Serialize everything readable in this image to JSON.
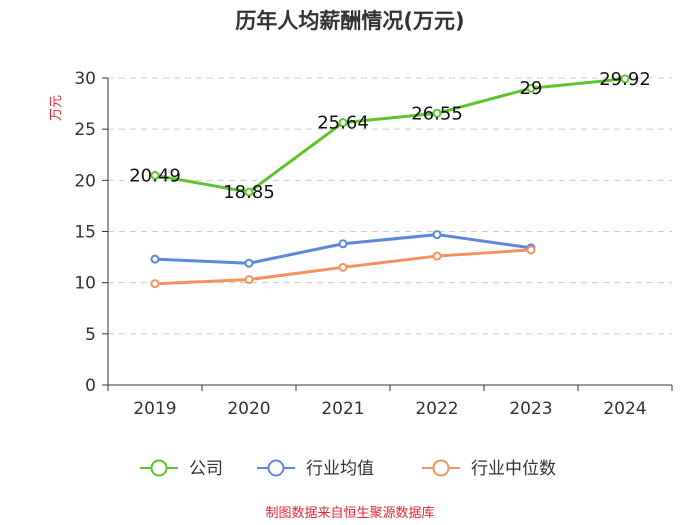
{
  "chart_data": {
    "type": "line",
    "title": "历年人均薪酬情况(万元)",
    "ylabel": "万元",
    "xlabel": "",
    "categories": [
      "2019",
      "2020",
      "2021",
      "2022",
      "2023",
      "2024"
    ],
    "ylim": [
      0,
      30
    ],
    "yticks": [
      0,
      5,
      10,
      15,
      20,
      25,
      30
    ],
    "grid": true,
    "legend_position": "bottom-center",
    "series": [
      {
        "name": "公司",
        "color": "#5ec42b",
        "values": [
          20.49,
          18.85,
          25.64,
          26.55,
          29,
          29.92
        ],
        "labels": [
          "20.49",
          "18.85",
          "25.64",
          "26.55",
          "29",
          "29.92"
        ]
      },
      {
        "name": "行业均值",
        "color": "#5b87de",
        "values": [
          12.3,
          11.9,
          13.8,
          14.7,
          13.4,
          null
        ]
      },
      {
        "name": "行业中位数",
        "color": "#f5925e",
        "values": [
          9.9,
          10.3,
          11.5,
          12.6,
          13.2,
          null
        ]
      }
    ],
    "source": "制图数据来自恒生聚源数据库"
  }
}
